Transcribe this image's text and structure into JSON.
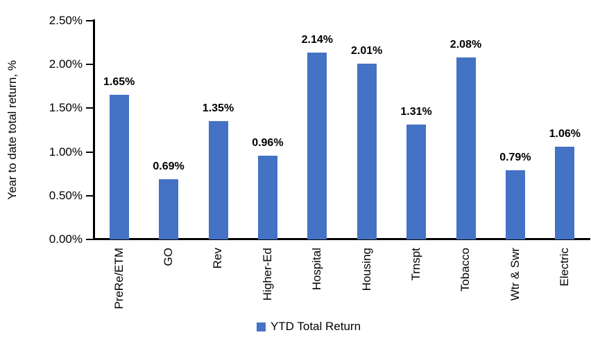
{
  "chart_data": {
    "type": "bar",
    "categories": [
      "PreRe/ETM",
      "GO",
      "Rev",
      "Higher-Ed",
      "Hospital",
      "Housing",
      "Trnspt",
      "Tobacco",
      "Wtr & Swr",
      "Electric"
    ],
    "values": [
      1.65,
      0.69,
      1.35,
      0.96,
      2.14,
      2.01,
      1.31,
      2.08,
      0.79,
      1.06
    ],
    "data_labels": [
      "1.65%",
      "0.69%",
      "1.35%",
      "0.96%",
      "2.14%",
      "2.01%",
      "1.31%",
      "2.08%",
      "0.79%",
      "1.06%"
    ],
    "title": "",
    "xlabel": "",
    "ylabel": "Year to date total return, %",
    "ylim": [
      0,
      2.5
    ],
    "yticks": [
      {
        "value": 0.0,
        "label": "0.00%"
      },
      {
        "value": 0.5,
        "label": "0.50%"
      },
      {
        "value": 1.0,
        "label": "1.00%"
      },
      {
        "value": 1.5,
        "label": "1.50%"
      },
      {
        "value": 2.0,
        "label": "2.00%"
      },
      {
        "value": 2.5,
        "label": "2.50%"
      }
    ],
    "grid": false,
    "legend": {
      "label": "YTD Total Return",
      "position": "bottom-center"
    },
    "colors": {
      "bar": "#4472C4",
      "axis": "#000000",
      "text": "#000000",
      "background": "#FFFFFF"
    }
  }
}
